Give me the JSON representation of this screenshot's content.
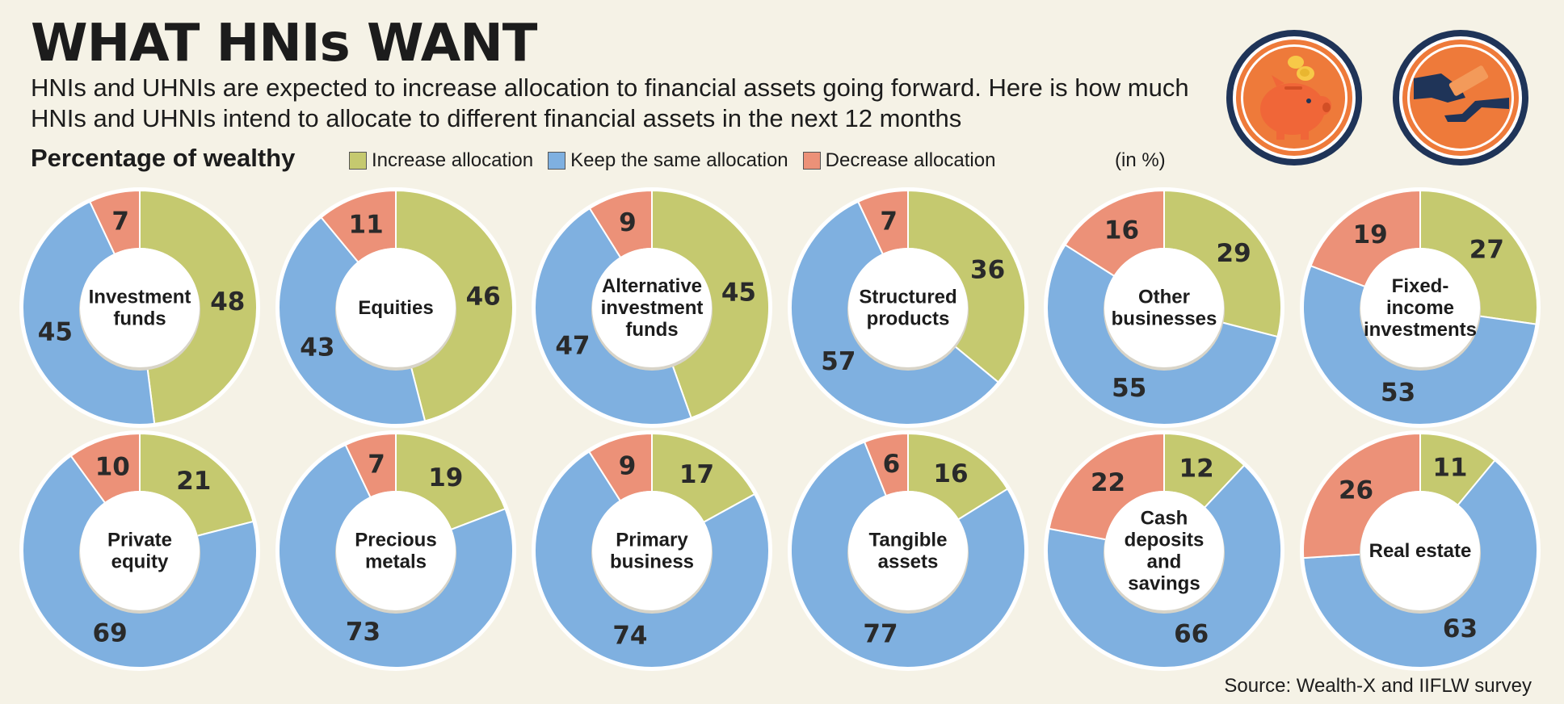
{
  "header": {
    "title": "WHAT HNIs WANT",
    "subtitle": "HNIs and UHNIs are expected to increase allocation to financial assets going forward. Here is how much HNIs and UHNIs intend to allocate to different financial assets in the next 12 months",
    "section_label": "Percentage of wealthy",
    "unit": "(in %)"
  },
  "legend": [
    {
      "label": "Increase allocation",
      "color": "#c5c96f"
    },
    {
      "label": "Keep the same allocation",
      "color": "#7fb0e0"
    },
    {
      "label": "Decrease allocation",
      "color": "#ec9178"
    }
  ],
  "icons": [
    "piggy-bank-icon",
    "hand-giving-money-icon"
  ],
  "source": "Source: Wealth-X and IIFLW survey",
  "chart_data": {
    "type": "donut",
    "unit": "%",
    "series_names": [
      "Increase allocation",
      "Keep the same allocation",
      "Decrease allocation"
    ],
    "charts": [
      {
        "label": [
          "Investment",
          "funds"
        ],
        "increase": 48,
        "same": 45,
        "decrease": 7
      },
      {
        "label": [
          "Equities"
        ],
        "increase": 46,
        "same": 43,
        "decrease": 11
      },
      {
        "label": [
          "Alternative",
          "investment",
          "funds"
        ],
        "increase": 45,
        "same": 47,
        "decrease": 9
      },
      {
        "label": [
          "Structured",
          "products"
        ],
        "increase": 36,
        "same": 57,
        "decrease": 7
      },
      {
        "label": [
          "Other",
          "businesses"
        ],
        "increase": 29,
        "same": 55,
        "decrease": 16
      },
      {
        "label": [
          "Fixed-",
          "income",
          "investments"
        ],
        "increase": 27,
        "same": 53,
        "decrease": 19
      },
      {
        "label": [
          "Private",
          "equity"
        ],
        "increase": 21,
        "same": 69,
        "decrease": 10
      },
      {
        "label": [
          "Precious",
          "metals"
        ],
        "increase": 19,
        "same": 73,
        "decrease": 7
      },
      {
        "label": [
          "Primary",
          "business"
        ],
        "increase": 17,
        "same": 74,
        "decrease": 9
      },
      {
        "label": [
          "Tangible",
          "assets"
        ],
        "increase": 16,
        "same": 77,
        "decrease": 6
      },
      {
        "label": [
          "Cash",
          "deposits",
          "and",
          "savings"
        ],
        "increase": 12,
        "same": 66,
        "decrease": 22
      },
      {
        "label": [
          "Real estate"
        ],
        "increase": 11,
        "same": 63,
        "decrease": 26
      }
    ]
  }
}
